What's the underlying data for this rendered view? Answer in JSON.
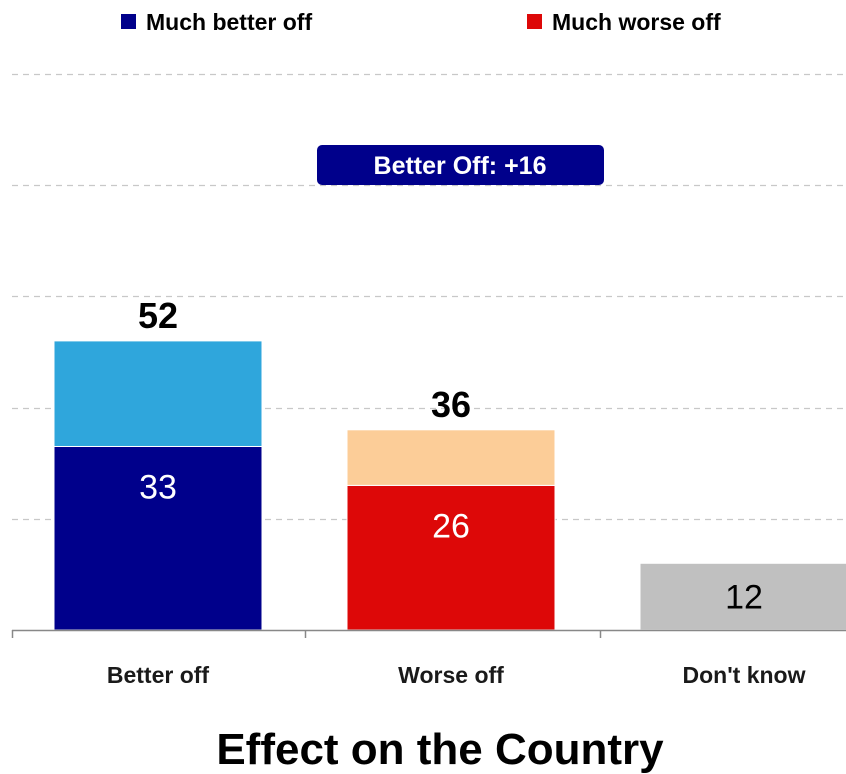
{
  "chart_data": {
    "type": "bar",
    "title": "Effect on the Country",
    "categories": [
      "Better off",
      "Worse off",
      "Don't know"
    ],
    "totals": [
      52,
      36,
      12
    ],
    "series": [
      {
        "name": "Much better off",
        "values": [
          33,
          null,
          null
        ],
        "color": "#00008b"
      },
      {
        "name": "",
        "values": [
          19,
          null,
          null
        ],
        "color": "#2fa6dc"
      },
      {
        "name": "Much worse off",
        "values": [
          null,
          26,
          null
        ],
        "color": "#dd0808"
      },
      {
        "name": "",
        "values": [
          null,
          10,
          null
        ],
        "color": "#fccd98"
      },
      {
        "name": "",
        "values": [
          null,
          null,
          12
        ],
        "color": "#c0c0c0"
      }
    ],
    "bar_labels": [
      "33",
      "26",
      "12"
    ],
    "total_labels": [
      "52",
      "36",
      ""
    ],
    "legend": [
      {
        "label": "Much better off",
        "color": "#00008b"
      },
      {
        "label": "Much worse off",
        "color": "#dd0808"
      }
    ],
    "legend_position": "top",
    "callout": {
      "text": "Better Off: +16",
      "color": "#00008b"
    },
    "ylim": [
      0,
      100
    ],
    "grid": true,
    "xlabel": "",
    "ylabel": ""
  }
}
